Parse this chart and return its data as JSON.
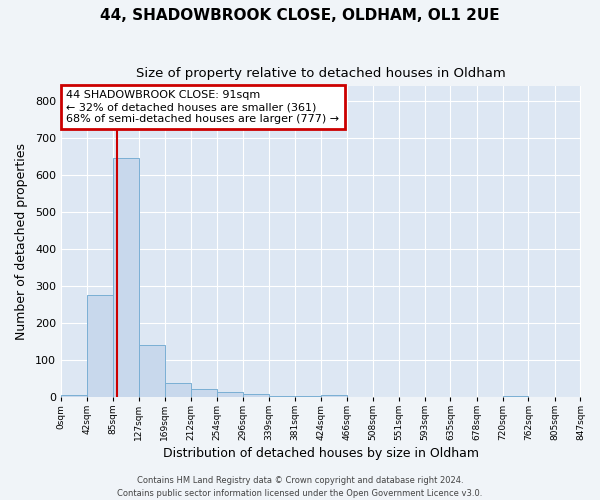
{
  "title": "44, SHADOWBROOK CLOSE, OLDHAM, OL1 2UE",
  "subtitle": "Size of property relative to detached houses in Oldham",
  "xlabel": "Distribution of detached houses by size in Oldham",
  "ylabel": "Number of detached properties",
  "bar_color": "#c8d8ec",
  "bar_edge_color": "#7aafd4",
  "fig_background_color": "#f0f4f8",
  "plot_background_color": "#dde7f3",
  "grid_color": "#ffffff",
  "annotation_box_edge_color": "#cc0000",
  "annotation_line_color": "#cc0000",
  "red_line_x": 91,
  "annotation_line1": "44 SHADOWBROOK CLOSE: 91sqm",
  "annotation_line2": "← 32% of detached houses are smaller (361)",
  "annotation_line3": "68% of semi-detached houses are larger (777) →",
  "footer_line1": "Contains HM Land Registry data © Crown copyright and database right 2024.",
  "footer_line2": "Contains public sector information licensed under the Open Government Licence v3.0.",
  "bin_edges": [
    0,
    42,
    85,
    127,
    169,
    212,
    254,
    296,
    339,
    381,
    424,
    466,
    508,
    551,
    593,
    635,
    678,
    720,
    762,
    805,
    847
  ],
  "bar_heights": [
    5,
    275,
    645,
    140,
    38,
    20,
    12,
    8,
    3,
    1,
    5,
    0,
    0,
    0,
    0,
    0,
    0,
    1,
    0,
    0
  ],
  "ylim": [
    0,
    840
  ],
  "yticks": [
    0,
    100,
    200,
    300,
    400,
    500,
    600,
    700,
    800
  ],
  "xtick_labels": [
    "0sqm",
    "42sqm",
    "85sqm",
    "127sqm",
    "169sqm",
    "212sqm",
    "254sqm",
    "296sqm",
    "339sqm",
    "381sqm",
    "424sqm",
    "466sqm",
    "508sqm",
    "551sqm",
    "593sqm",
    "635sqm",
    "678sqm",
    "720sqm",
    "762sqm",
    "805sqm",
    "847sqm"
  ]
}
